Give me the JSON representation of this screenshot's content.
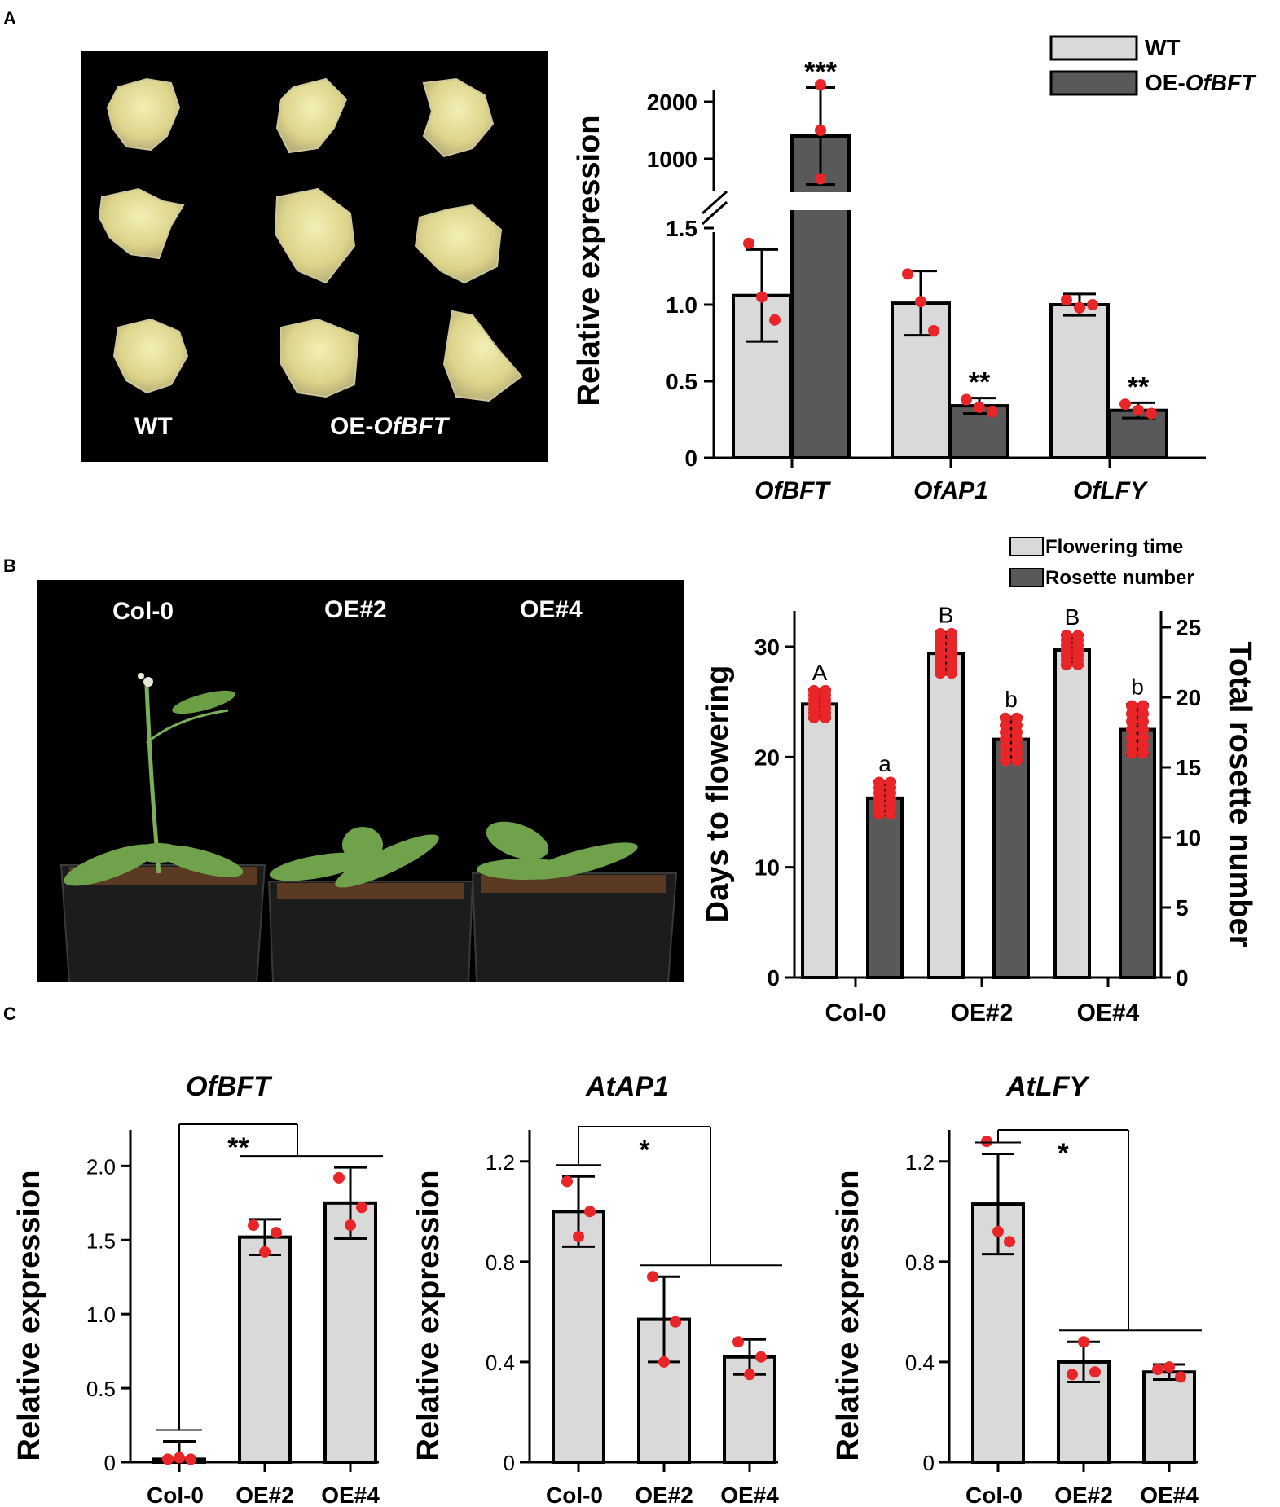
{
  "panels": {
    "A": "A",
    "B": "B",
    "C": "C"
  },
  "photoA": {
    "wt_label": "WT",
    "oe_label_prefix": "OE-",
    "oe_label_gene": "OfBFT"
  },
  "photoB": {
    "labels": [
      "Col-0",
      "OE#2",
      "OE#4"
    ]
  },
  "colors": {
    "light_bar": "#d9d9d9",
    "dark_bar": "#595959",
    "dot": "#e8262a",
    "stroke": "#000000"
  },
  "chart_data": [
    {
      "id": "A",
      "type": "bar",
      "ylabel": "Relative expression",
      "categories": [
        "OfBFT",
        "OfAP1",
        "OfLFY"
      ],
      "legend": {
        "placement": "top-right",
        "entries": [
          {
            "prefix": "WT",
            "italic": ""
          },
          {
            "prefix": "OE-",
            "italic": "OfBFT"
          }
        ]
      },
      "y_ticks_lower": [
        "0",
        "0.5",
        "1.0",
        "1.5"
      ],
      "y_ticks_upper": [
        "1000",
        "2000"
      ],
      "axis_break": true,
      "series": [
        {
          "name": "WT",
          "values": [
            1.06,
            1.01,
            1.0
          ],
          "errors": [
            0.3,
            0.21,
            0.07
          ],
          "points": [
            [
              1.4,
              1.05,
              0.9
            ],
            [
              1.2,
              1.02,
              0.83
            ],
            [
              1.03,
              0.98,
              1.0
            ]
          ]
        },
        {
          "name": "OE-OfBFT",
          "values": [
            1400,
            0.34,
            0.31
          ],
          "errors": [
            850,
            0.05,
            0.05
          ],
          "points": [
            [
              2300,
              1500,
              650
            ],
            [
              0.38,
              0.33,
              0.3
            ],
            [
              0.35,
              0.31,
              0.29
            ]
          ]
        }
      ],
      "significance": [
        "***",
        "**",
        "**"
      ]
    },
    {
      "id": "B",
      "type": "bar",
      "categories": [
        "Col-0",
        "OE#2",
        "OE#4"
      ],
      "ylabel_left": "Days to flowering",
      "ylabel_right": "Total rosette number",
      "ylim_left": [
        0,
        32
      ],
      "ylim_right": [
        0,
        26
      ],
      "yticks_left": [
        "0",
        "10",
        "20",
        "30"
      ],
      "yticks_right": [
        "0",
        "5",
        "10",
        "15",
        "20",
        "25"
      ],
      "legend": {
        "placement": "top-right",
        "entries": [
          "Flowering time",
          "Rosette number"
        ]
      },
      "series": [
        {
          "name": "Flowering time",
          "axis": "left",
          "values": [
            24.8,
            29.4,
            29.7
          ],
          "errors": [
            1.3,
            1.9,
            1.4
          ],
          "letters": [
            "A",
            "B",
            "B"
          ]
        },
        {
          "name": "Rosette number",
          "axis": "right",
          "values": [
            12.8,
            17.0,
            17.7
          ],
          "errors": [
            1.2,
            1.6,
            1.8
          ],
          "letters": [
            "a",
            "b",
            "b"
          ]
        }
      ]
    },
    {
      "id": "C1",
      "type": "bar",
      "title": "OfBFT",
      "ylabel": "Relative expression",
      "categories": [
        "Col-0",
        "OE#2",
        "OE#4"
      ],
      "ylim": [
        0,
        2.2
      ],
      "yticks": [
        "0",
        "0.5",
        "1.0",
        "1.5",
        "2.0"
      ],
      "values": [
        0.02,
        1.52,
        1.75
      ],
      "errors": [
        0.12,
        0.12,
        0.24
      ],
      "points": [
        [
          0.02,
          0.03,
          0.02
        ],
        [
          1.6,
          1.42,
          1.55
        ],
        [
          1.92,
          1.6,
          1.72
        ]
      ],
      "significance": "**"
    },
    {
      "id": "C2",
      "type": "bar",
      "title": "AtAP1",
      "ylabel": "Relative expression",
      "categories": [
        "Col-0",
        "OE#2",
        "OE#4"
      ],
      "ylim": [
        0,
        1.3
      ],
      "yticks": [
        "0",
        "0.4",
        "0.8",
        "1.2"
      ],
      "values": [
        1.0,
        0.57,
        0.42
      ],
      "errors": [
        0.14,
        0.17,
        0.07
      ],
      "points": [
        [
          1.12,
          0.9,
          1.0
        ],
        [
          0.74,
          0.4,
          0.56
        ],
        [
          0.48,
          0.35,
          0.42
        ]
      ],
      "significance": "*"
    },
    {
      "id": "C3",
      "type": "bar",
      "title": "AtLFY",
      "ylabel": "Relative expression",
      "categories": [
        "Col-0",
        "OE#2",
        "OE#4"
      ],
      "ylim": [
        0,
        1.3
      ],
      "yticks": [
        "0",
        "0.4",
        "0.8",
        "1.2"
      ],
      "values": [
        1.03,
        0.4,
        0.36
      ],
      "errors": [
        0.2,
        0.08,
        0.03
      ],
      "points": [
        [
          1.28,
          0.92,
          0.88
        ],
        [
          0.35,
          0.48,
          0.36
        ],
        [
          0.37,
          0.38,
          0.34
        ]
      ],
      "significance": "*"
    }
  ]
}
